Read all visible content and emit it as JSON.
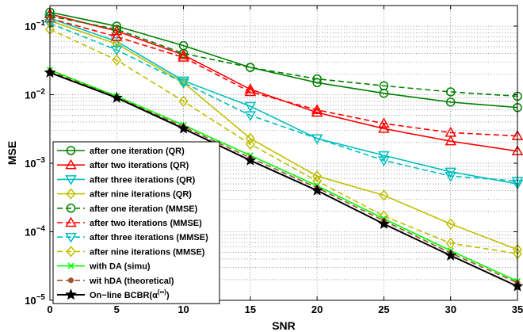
{
  "chart_data": {
    "type": "line",
    "xlabel": "SNR",
    "ylabel": "MSE",
    "xlim": [
      0,
      35
    ],
    "ylim": [
      1e-05,
      0.2
    ],
    "yscale": "log",
    "grid": true,
    "legend_position": "bottom-left",
    "x_ticks": [
      0,
      5,
      10,
      15,
      20,
      25,
      30,
      35
    ],
    "x_tick_labels": [
      "0",
      "5",
      "10",
      "15",
      "20",
      "25",
      "30",
      "35"
    ],
    "y_ticks": [
      1e-05,
      0.0001,
      0.001,
      0.01,
      0.1
    ],
    "y_tick_labels": [
      {
        "base": "10",
        "exp": "−5"
      },
      {
        "base": "10",
        "exp": "−4"
      },
      {
        "base": "10",
        "exp": "−3"
      },
      {
        "base": "10",
        "exp": "−2"
      },
      {
        "base": "10",
        "exp": "−1"
      }
    ],
    "x": [
      0,
      5,
      10,
      15,
      20,
      25,
      30,
      35
    ],
    "series": [
      {
        "name": "after one iteration (QR)",
        "color": "#008000",
        "dash": "solid",
        "marker": "circle",
        "values": [
          0.16,
          0.1,
          0.052,
          0.025,
          0.015,
          0.0105,
          0.0078,
          0.0065
        ]
      },
      {
        "name": "after two iterations (QR)",
        "color": "#ff0000",
        "dash": "solid",
        "marker": "triangle-up",
        "values": [
          0.15,
          0.085,
          0.038,
          0.012,
          0.0055,
          0.0032,
          0.0021,
          0.0015
        ]
      },
      {
        "name": "after three iterations (QR)",
        "color": "#00bfbf",
        "dash": "solid",
        "marker": "triangle-down",
        "values": [
          0.13,
          0.06,
          0.016,
          0.0068,
          0.0023,
          0.0013,
          0.00075,
          0.0005
        ]
      },
      {
        "name": "after nine iterations (QR)",
        "color": "#bfbf00",
        "dash": "solid",
        "marker": "diamond",
        "values": [
          0.12,
          0.055,
          0.015,
          0.0023,
          0.00065,
          0.00034,
          0.00013,
          5.5e-05
        ]
      },
      {
        "name": "after one iteration (MMSE)",
        "color": "#008000",
        "dash": "dashed",
        "marker": "circle",
        "values": [
          0.14,
          0.09,
          0.04,
          0.025,
          0.017,
          0.0135,
          0.011,
          0.0095
        ]
      },
      {
        "name": "after two iterations (MMSE)",
        "color": "#ff0000",
        "dash": "dashed",
        "marker": "triangle-up",
        "values": [
          0.13,
          0.07,
          0.035,
          0.011,
          0.006,
          0.0038,
          0.0028,
          0.0025
        ]
      },
      {
        "name": "after three iterations (MMSE)",
        "color": "#00bfbf",
        "dash": "dashed",
        "marker": "triangle-down",
        "values": [
          0.11,
          0.045,
          0.015,
          0.005,
          0.0023,
          0.0011,
          0.00065,
          0.00055
        ]
      },
      {
        "name": "after nine iterations (MMSE)",
        "color": "#bfbf00",
        "dash": "dashed",
        "marker": "diamond",
        "values": [
          0.09,
          0.032,
          0.008,
          0.0019,
          0.00055,
          0.00017,
          6.8e-05,
          4.8e-05
        ]
      },
      {
        "name": "with DA (simu)",
        "color": "#00ff00",
        "dash": "solid",
        "marker": "x",
        "values": [
          0.023,
          0.0095,
          0.0036,
          0.0013,
          0.00047,
          0.000155,
          5.3e-05,
          1.9e-05
        ]
      },
      {
        "name": "wit hDA (theoretical)",
        "color": "#a0522d",
        "dash": "dashed",
        "marker": "dot",
        "values": [
          0.022,
          0.0092,
          0.0034,
          0.0012,
          0.00044,
          0.000145,
          4.9e-05,
          1.8e-05
        ]
      },
      {
        "name": "On−line BCBR(α",
        "name_sup": "(∞)",
        "name_end": ")",
        "color": "#000000",
        "dash": "solid",
        "marker": "star",
        "values": [
          0.021,
          0.009,
          0.0032,
          0.0011,
          0.0004,
          0.00013,
          4.5e-05,
          1.6e-05
        ]
      }
    ]
  }
}
